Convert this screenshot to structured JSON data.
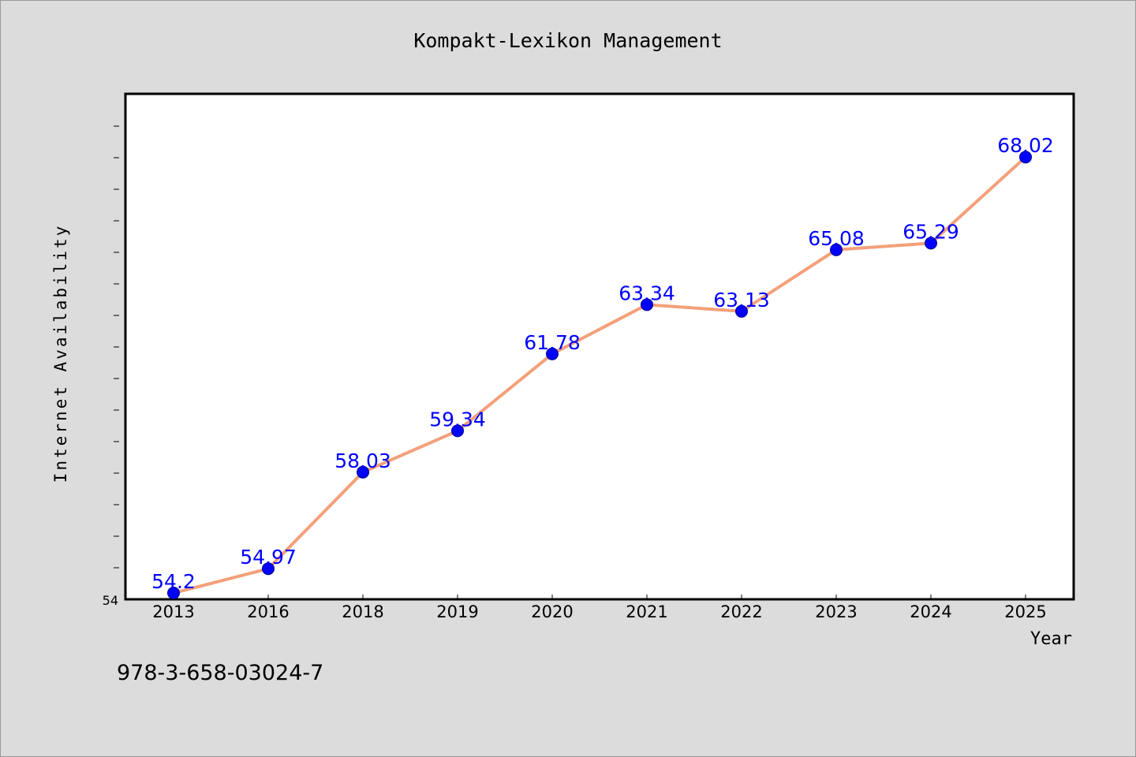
{
  "chart_data": {
    "type": "line",
    "title": "Kompakt-Lexikon Management",
    "xlabel": "Year",
    "ylabel": "Internet Availability",
    "categories": [
      "2013",
      "2016",
      "2018",
      "2019",
      "2020",
      "2021",
      "2022",
      "2023",
      "2024",
      "2025"
    ],
    "series": [
      {
        "values": [
          54.2,
          54.97,
          58.03,
          59.34,
          61.78,
          63.34,
          63.13,
          65.08,
          65.29,
          68.02
        ],
        "labels": [
          "54.2",
          "54.97",
          "58.03",
          "59.34",
          "61.78",
          "63.34",
          "63.13",
          "65.08",
          "65.29",
          "68.02"
        ]
      }
    ],
    "y_tick_labels": [
      "54"
    ],
    "ylim": [
      54,
      70
    ],
    "grid": false,
    "legend": "none",
    "line_color": "#f4a07a",
    "marker_color": "#0000ff",
    "label_color": "#0000ff"
  },
  "footer": {
    "isbn": "978-3-658-03024-7"
  }
}
